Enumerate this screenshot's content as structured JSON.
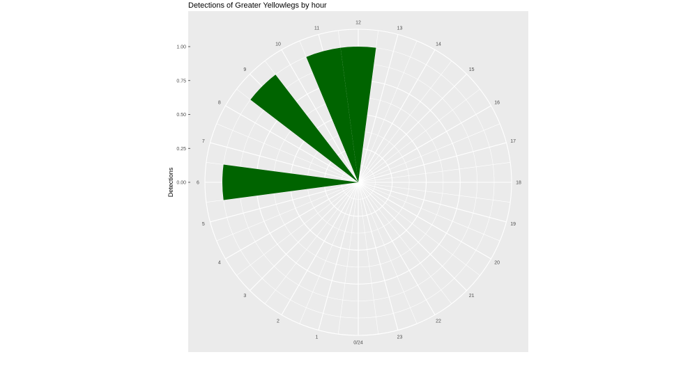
{
  "chart_data": {
    "type": "bar",
    "coordinate_system": "polar",
    "title": "Detections of Greater Yellowlegs by hour",
    "xlabel": "",
    "ylabel": "Detections",
    "ylim": [
      0,
      1.0
    ],
    "y_ticks": [
      "0.00",
      "0.25",
      "0.50",
      "0.75",
      "1.00"
    ],
    "hour_labels": [
      "0/24",
      "1",
      "2",
      "3",
      "4",
      "5",
      "6",
      "7",
      "8",
      "9",
      "10",
      "11",
      "12",
      "13",
      "14",
      "15",
      "16",
      "17",
      "18",
      "19",
      "20",
      "21",
      "22",
      "23"
    ],
    "categories": [
      6,
      9,
      11,
      12
    ],
    "values": [
      1.0,
      1.0,
      1.0,
      1.0
    ],
    "bar_color": "#006400",
    "panel_background": "#ebebeb",
    "grid": true
  }
}
